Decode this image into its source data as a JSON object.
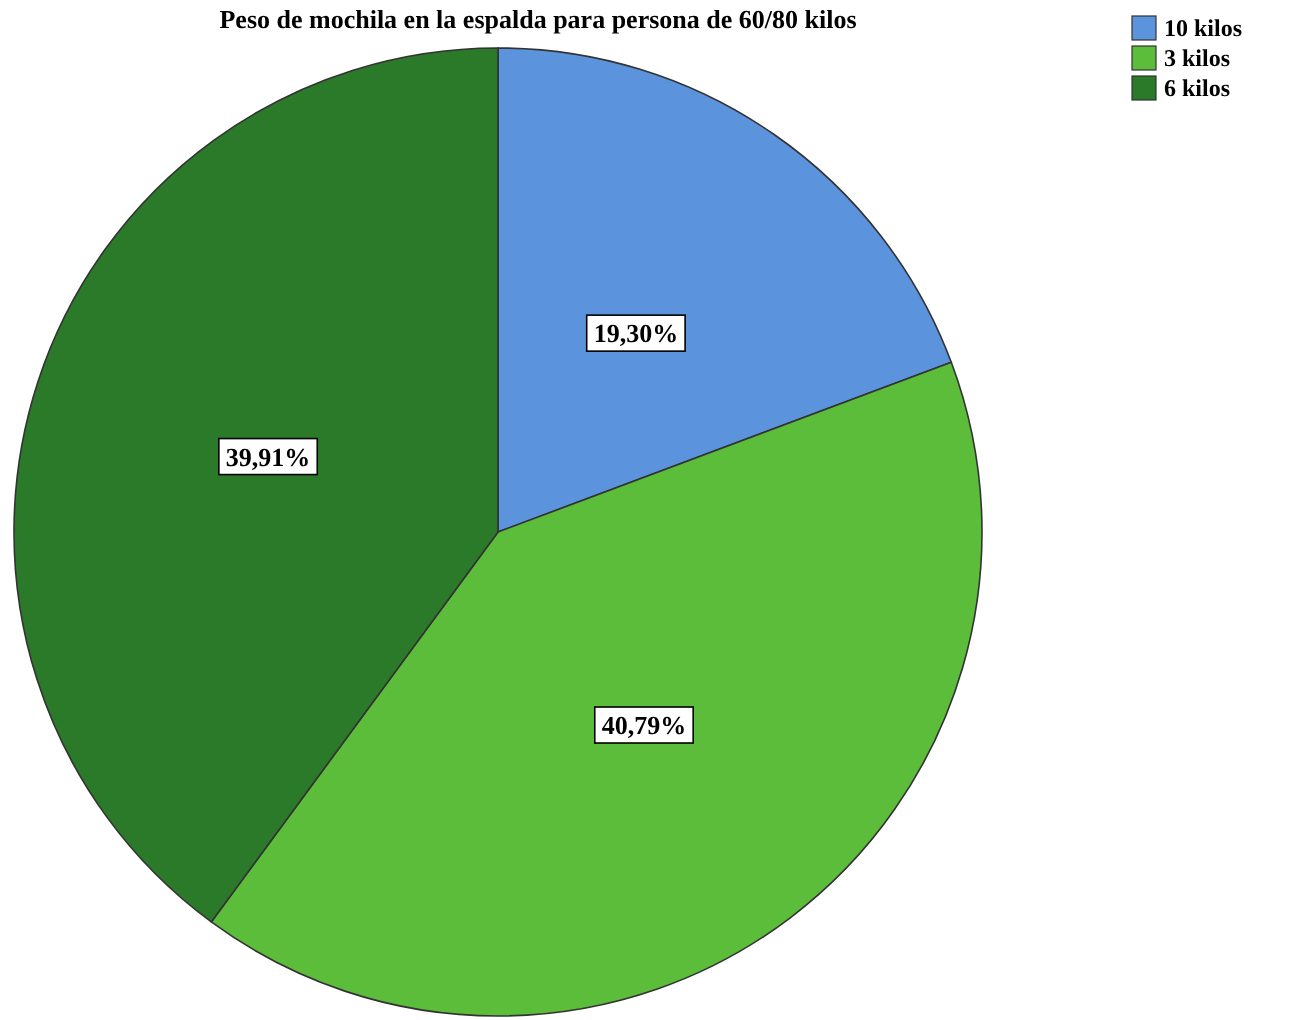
{
  "chart_data": {
    "type": "pie",
    "title": "Peso de mochila en la espalda para persona de 60/80 kilos",
    "categories": [
      "10 kilos",
      "3 kilos",
      "6 kilos"
    ],
    "values": [
      19.3,
      40.79,
      39.91
    ],
    "colors": [
      "#5b93dc",
      "#5cbd3a",
      "#2a7a2a"
    ],
    "value_labels": [
      "19,30%",
      "40,79%",
      "39,91%"
    ],
    "legend": "top right"
  }
}
